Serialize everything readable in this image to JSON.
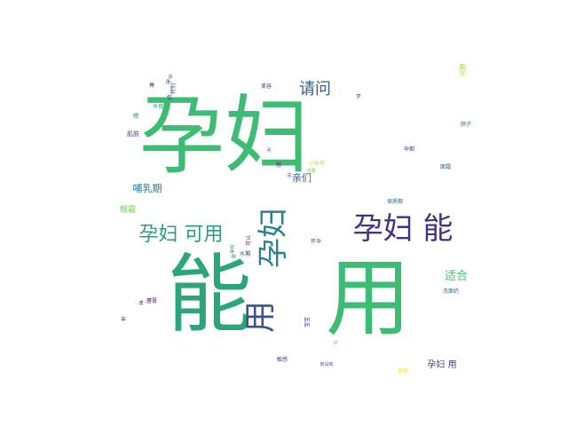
{
  "word_cloud": {
    "words": [
      {
        "text": "孕妇",
        "color": "#3dbc74"
      },
      {
        "text": "能",
        "color": "#2ca57a"
      },
      {
        "text": "用",
        "color": "#3dbc74"
      },
      {
        "text": "孕妇 能",
        "color": "#46327e"
      },
      {
        "text": "孕妇 可用",
        "color": "#2c9a8a"
      },
      {
        "text": "孕妇",
        "color": "#2e7f8e"
      },
      {
        "text": "用",
        "color": "#3b528b"
      },
      {
        "text": "请问",
        "color": "#375c8c"
      },
      {
        "text": "哺乳期",
        "color": "#2a788e"
      },
      {
        "text": "适合",
        "color": "#4ac16d"
      },
      {
        "text": "亲们",
        "color": "#365d8d"
      },
      {
        "text": "孕妇 用",
        "color": "#404688"
      },
      {
        "text": "眼霜",
        "color": "#6ece58"
      },
      {
        "text": "肌肤",
        "color": "#3e4c8a"
      },
      {
        "text": "水乳",
        "color": "#31688e"
      },
      {
        "text": "怀孕",
        "color": "#355f8d"
      },
      {
        "text": "保质期",
        "color": "#2f6c8e"
      },
      {
        "text": "敏感",
        "color": "#3e4989"
      },
      {
        "text": "有没有",
        "color": "#3b528b"
      },
      {
        "text": "面膜",
        "color": "#fde725"
      },
      {
        "text": "洗面奶",
        "color": "#306a8e"
      },
      {
        "text": "脖子",
        "color": "#2d718e"
      },
      {
        "text": "面霜",
        "color": "#34618d"
      },
      {
        "text": "孕期",
        "color": "#3f4788"
      },
      {
        "text": "唇膏",
        "color": "#440154"
      },
      {
        "text": "小伙伴",
        "color": "#b5de2b"
      },
      {
        "text": "想",
        "color": "#482878"
      },
      {
        "text": "总",
        "color": "#414487"
      },
      {
        "text": "问",
        "color": "#33638d"
      },
      {
        "text": "少",
        "color": "#23898e"
      },
      {
        "text": "仅",
        "color": "#46307e"
      },
      {
        "text": "再",
        "color": "#46085c"
      },
      {
        "text": "喂",
        "color": "#2a768e"
      },
      {
        "text": "美容",
        "color": "#414487"
      },
      {
        "text": "孕",
        "color": "#3e4a89"
      },
      {
        "text": "丰",
        "color": "#472c7a"
      },
      {
        "text": "唐",
        "color": "#482475"
      },
      {
        "text": "请",
        "color": "#32658e"
      },
      {
        "text": "梦",
        "color": "#3d4e8a"
      },
      {
        "text": "孕育",
        "color": "#1f9e89"
      },
      {
        "text": "可以",
        "color": "#482677"
      },
      {
        "text": "宝宝",
        "color": "#443983"
      },
      {
        "text": "特别",
        "color": "#3f4889"
      },
      {
        "text": "问题",
        "color": "#9bd93c"
      },
      {
        "text": "奈香",
        "color": "#7ad151"
      },
      {
        "text": "试",
        "color": "#433e85"
      },
      {
        "text": "孕妇",
        "color": "#2e6f8e"
      },
      {
        "text": "能",
        "color": "#2c728e"
      }
    ]
  }
}
